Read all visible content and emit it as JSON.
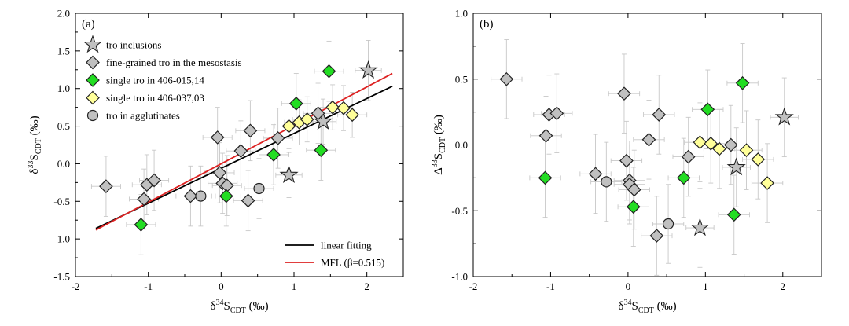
{
  "chart_data": [
    {
      "type": "scatter",
      "panel_label": "(a)",
      "ylabel": {
        "pre": "δ",
        "sup": "33",
        "main": "S",
        "sub": "CDT",
        "post": " (‰)"
      },
      "xlabel": {
        "pre": "δ",
        "sup": "34",
        "main": "S",
        "sub": "CDT",
        "post": " (‰)"
      },
      "xlim": [
        -2,
        2.5
      ],
      "ylim": [
        -1.5,
        2.0
      ],
      "xticks": [
        -2,
        -1,
        0,
        1,
        2
      ],
      "xtick_labels": [
        "-2",
        "-1",
        "0",
        "1",
        "2"
      ],
      "yticks": [
        -1.5,
        -1.0,
        -0.5,
        0.0,
        0.5,
        1.0,
        1.5,
        2.0
      ],
      "ytick_labels": [
        "-1.5",
        "-1.0",
        "-0.5",
        "0.0",
        "0.5",
        "1.0",
        "1.5",
        "2.0"
      ],
      "grid": false,
      "legend_position": "top-left",
      "series": [
        {
          "name": "tro inclusions",
          "marker": "star",
          "color": "#c0c0c0",
          "points": [
            [
              0.93,
              -0.15,
              0.18,
              0.3
            ],
            [
              1.4,
              0.56,
              0.18,
              0.3
            ],
            [
              2.02,
              1.24,
              0.18,
              0.4
            ]
          ]
        },
        {
          "name": "fine-grained tro in the mesostasis",
          "marker": "diamond",
          "color": "#c0c0c0",
          "points": [
            [
              -1.58,
              -0.3,
              0.2,
              0.4
            ],
            [
              -1.06,
              -0.47,
              0.2,
              0.4
            ],
            [
              -1.02,
              -0.28,
              0.2,
              0.4
            ],
            [
              -0.92,
              -0.22,
              0.2,
              0.4
            ],
            [
              -0.42,
              -0.43,
              0.2,
              0.4
            ],
            [
              -0.05,
              0.35,
              0.2,
              0.4
            ],
            [
              -0.02,
              -0.12,
              0.2,
              0.4
            ],
            [
              0.02,
              -0.26,
              0.2,
              0.4
            ],
            [
              0.08,
              -0.29,
              0.2,
              0.4
            ],
            [
              0.27,
              0.17,
              0.2,
              0.4
            ],
            [
              0.37,
              -0.49,
              0.2,
              0.4
            ],
            [
              0.4,
              0.44,
              0.2,
              0.4
            ],
            [
              0.78,
              0.34,
              0.2,
              0.4
            ],
            [
              1.33,
              0.67,
              0.2,
              0.4
            ]
          ]
        },
        {
          "name": "single tro in 406-015,14",
          "marker": "diamond",
          "color": "#22dd22",
          "points": [
            [
              -1.1,
              -0.81,
              0.2,
              0.4
            ],
            [
              0.07,
              -0.43,
              0.2,
              0.4
            ],
            [
              0.72,
              0.12,
              0.2,
              0.4
            ],
            [
              1.03,
              0.8,
              0.2,
              0.4
            ],
            [
              1.37,
              0.18,
              0.2,
              0.4
            ],
            [
              1.48,
              1.23,
              0.2,
              0.4
            ]
          ]
        },
        {
          "name": "single tro in 406-037,03",
          "marker": "diamond",
          "color": "#ffff99",
          "points": [
            [
              0.93,
              0.5,
              0.2,
              0.3
            ],
            [
              1.07,
              0.55,
              0.2,
              0.3
            ],
            [
              1.18,
              0.59,
              0.2,
              0.3
            ],
            [
              1.53,
              0.75,
              0.2,
              0.3
            ],
            [
              1.68,
              0.74,
              0.2,
              0.3
            ],
            [
              1.8,
              0.65,
              0.2,
              0.3
            ]
          ]
        },
        {
          "name": "tro in agglutinates",
          "marker": "circle",
          "color": "#c0c0c0",
          "points": [
            [
              -0.28,
              -0.43,
              0.2,
              0.4
            ],
            [
              0.52,
              -0.33,
              0.2,
              0.4
            ]
          ]
        }
      ],
      "lines": [
        {
          "name": "linear fitting",
          "color": "#000000",
          "x": [
            -1.72,
            2.35
          ],
          "y": [
            -0.86,
            1.03
          ]
        },
        {
          "name": "MFL (β=0.515)",
          "color": "#dd2222",
          "x": [
            -1.72,
            2.35
          ],
          "y": [
            -0.88,
            1.2
          ]
        }
      ]
    },
    {
      "type": "scatter",
      "panel_label": "(b)",
      "ylabel": {
        "pre": "Δ",
        "sup": "33",
        "main": "S",
        "sub": "CDT",
        "post": " (‰)"
      },
      "xlabel": {
        "pre": "δ",
        "sup": "34",
        "main": "S",
        "sub": "CDT",
        "post": " (‰)"
      },
      "xlim": [
        -2,
        2.5
      ],
      "ylim": [
        -1.0,
        1.0
      ],
      "xticks": [
        -2,
        -1,
        0,
        1,
        2
      ],
      "xtick_labels": [
        "-2",
        "-1",
        "0",
        "1",
        "2"
      ],
      "yticks": [
        -1.0,
        -0.5,
        0.0,
        0.5,
        1.0
      ],
      "ytick_labels": [
        "-1.0",
        "-0.5",
        "0.0",
        "0.5",
        "1.0"
      ],
      "grid": false,
      "series": [
        {
          "marker": "star",
          "color": "#c0c0c0",
          "points": [
            [
              0.93,
              -0.63,
              0.18,
              0.3
            ],
            [
              1.4,
              -0.17,
              0.18,
              0.3
            ],
            [
              2.02,
              0.21,
              0.18,
              0.3
            ]
          ]
        },
        {
          "marker": "diamond",
          "color": "#c0c0c0",
          "points": [
            [
              -1.57,
              0.5,
              0.2,
              0.3
            ],
            [
              -1.06,
              0.07,
              0.2,
              0.3
            ],
            [
              -1.02,
              0.23,
              0.2,
              0.3
            ],
            [
              -0.92,
              0.24,
              0.2,
              0.3
            ],
            [
              -0.42,
              -0.22,
              0.2,
              0.3
            ],
            [
              -0.05,
              0.39,
              0.2,
              0.3
            ],
            [
              -0.02,
              -0.12,
              0.2,
              0.3
            ],
            [
              0.02,
              -0.27,
              0.2,
              0.3
            ],
            [
              0.02,
              -0.3,
              0.2,
              0.3
            ],
            [
              0.08,
              -0.34,
              0.2,
              0.3
            ],
            [
              0.27,
              0.04,
              0.2,
              0.3
            ],
            [
              0.37,
              -0.69,
              0.2,
              0.3
            ],
            [
              0.4,
              0.23,
              0.2,
              0.3
            ],
            [
              0.78,
              -0.09,
              0.2,
              0.3
            ],
            [
              1.33,
              0.0,
              0.2,
              0.3
            ]
          ]
        },
        {
          "marker": "diamond",
          "color": "#22dd22",
          "points": [
            [
              -1.07,
              -0.25,
              0.2,
              0.3
            ],
            [
              0.07,
              -0.47,
              0.2,
              0.3
            ],
            [
              0.72,
              -0.25,
              0.2,
              0.3
            ],
            [
              1.03,
              0.27,
              0.2,
              0.3
            ],
            [
              1.37,
              -0.53,
              0.2,
              0.3
            ],
            [
              1.48,
              0.47,
              0.2,
              0.3
            ]
          ]
        },
        {
          "marker": "diamond",
          "color": "#ffff99",
          "points": [
            [
              0.93,
              0.02,
              0.2,
              0.3
            ],
            [
              1.07,
              0.01,
              0.2,
              0.3
            ],
            [
              1.18,
              -0.03,
              0.2,
              0.3
            ],
            [
              1.53,
              -0.04,
              0.2,
              0.3
            ],
            [
              1.68,
              -0.11,
              0.2,
              0.3
            ],
            [
              1.8,
              -0.29,
              0.2,
              0.3
            ]
          ]
        },
        {
          "marker": "circle",
          "color": "#c0c0c0",
          "points": [
            [
              -0.28,
              -0.28,
              0.2,
              0.3
            ],
            [
              0.52,
              -0.6,
              0.2,
              0.3
            ]
          ]
        }
      ],
      "lines": []
    }
  ]
}
